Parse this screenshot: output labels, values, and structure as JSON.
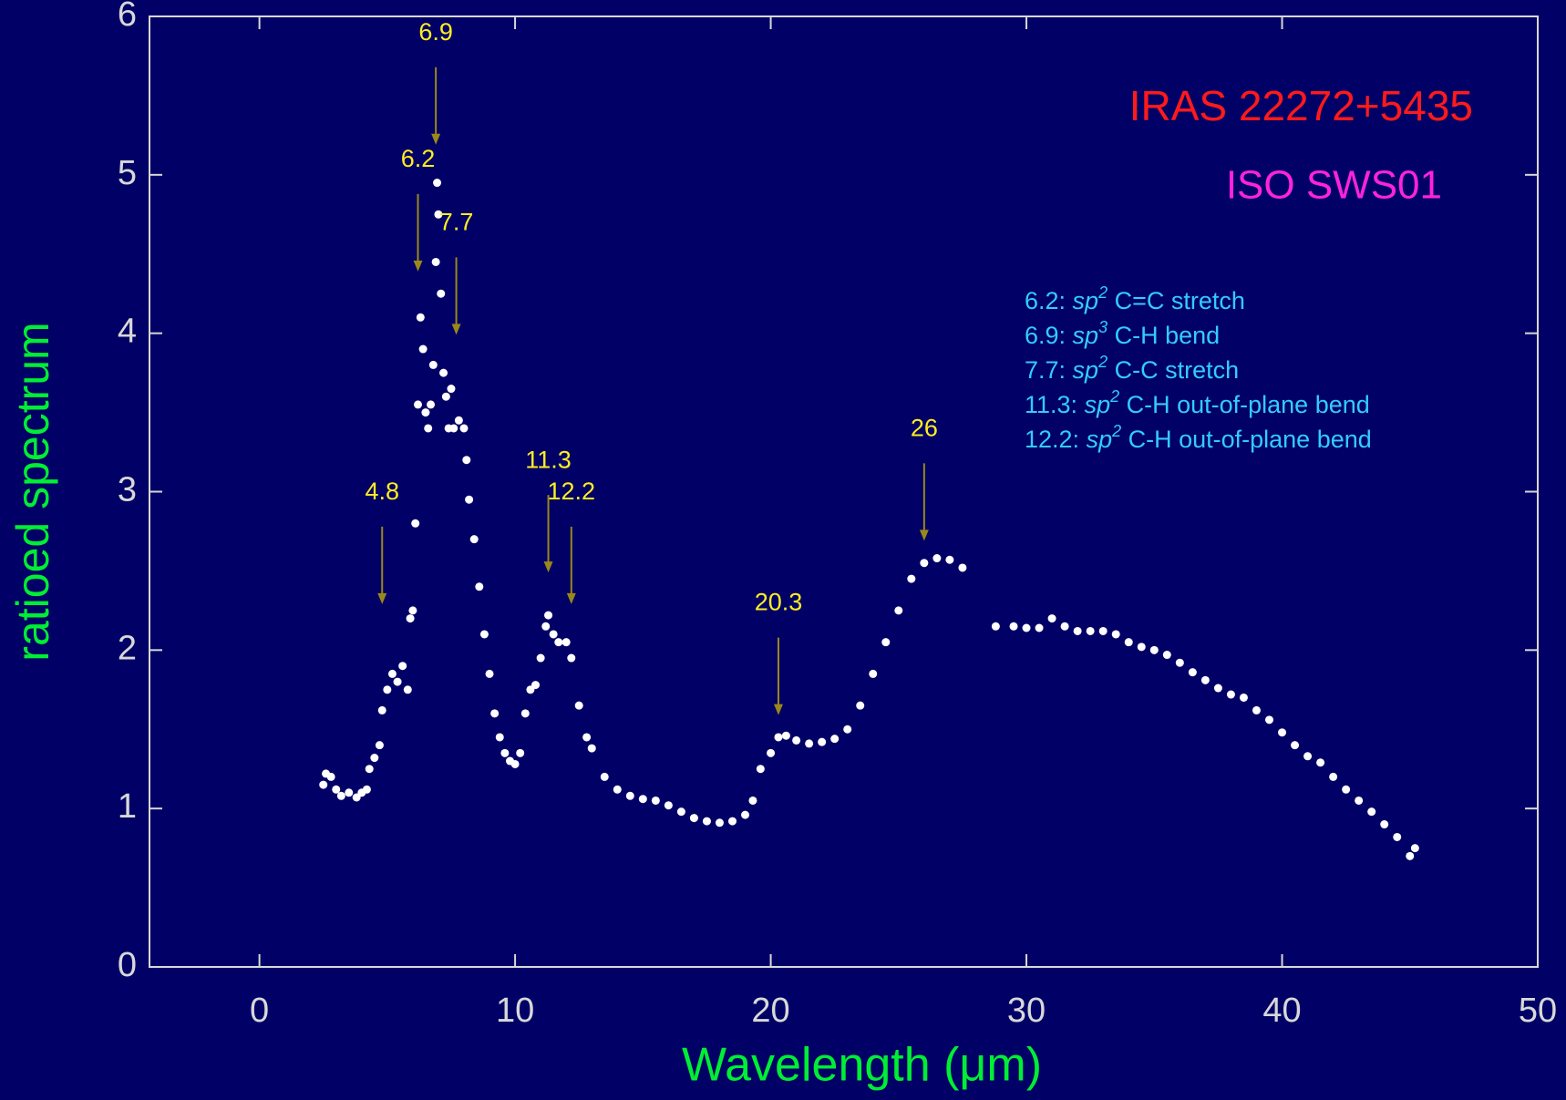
{
  "chart_data": {
    "type": "scatter",
    "title": "IRAS 22272+5435",
    "title_color": "#ff1a1a",
    "subtitle": "ISO SWS01",
    "subtitle_color": "#ff22dd",
    "x_label": "Wavelength (μm)",
    "y_label": "ratioed spectrum",
    "label_color": "#00ee33",
    "xlim": [
      -4.3,
      50
    ],
    "ylim": [
      0,
      6
    ],
    "xticks": [
      0,
      10,
      20,
      30,
      40,
      50
    ],
    "yticks": [
      0,
      1,
      2,
      3,
      4,
      5,
      6
    ],
    "color": "#ffffff",
    "x": [
      2.5,
      2.6,
      2.8,
      3.0,
      3.2,
      3.5,
      3.8,
      4.0,
      4.2,
      4.3,
      4.5,
      4.7,
      4.8,
      5.0,
      5.2,
      5.4,
      5.6,
      5.8,
      5.9,
      6.0,
      6.1,
      6.2,
      6.3,
      6.4,
      6.5,
      6.6,
      6.7,
      6.8,
      6.9,
      6.95,
      7.0,
      7.1,
      7.2,
      7.3,
      7.4,
      7.5,
      7.6,
      7.8,
      8.0,
      8.1,
      8.2,
      8.4,
      8.6,
      8.8,
      9.0,
      9.2,
      9.4,
      9.6,
      9.8,
      10.0,
      10.2,
      10.4,
      10.6,
      10.8,
      11.0,
      11.2,
      11.3,
      11.5,
      11.7,
      12.0,
      12.2,
      12.5,
      12.8,
      13.0,
      13.5,
      14.0,
      14.5,
      15.0,
      15.5,
      16.0,
      16.5,
      17.0,
      17.5,
      18.0,
      18.5,
      19.0,
      19.3,
      19.6,
      20.0,
      20.3,
      20.6,
      21.0,
      21.5,
      22.0,
      22.5,
      23.0,
      23.5,
      24.0,
      24.5,
      25.0,
      25.5,
      26.0,
      26.5,
      27.0,
      27.5,
      28.8,
      29.5,
      30.0,
      30.5,
      31.0,
      31.5,
      32.0,
      32.5,
      33.0,
      33.5,
      34.0,
      34.5,
      35.0,
      35.5,
      36.0,
      36.5,
      37.0,
      37.5,
      38.0,
      38.5,
      39.0,
      39.5,
      40.0,
      40.5,
      41.0,
      41.5,
      42.0,
      42.5,
      43.0,
      43.5,
      44.0,
      44.5,
      45.0,
      45.2
    ],
    "values": [
      1.15,
      1.22,
      1.2,
      1.12,
      1.08,
      1.1,
      1.07,
      1.1,
      1.12,
      1.25,
      1.32,
      1.4,
      1.62,
      1.75,
      1.85,
      1.8,
      1.9,
      1.75,
      2.2,
      2.25,
      2.8,
      3.55,
      4.1,
      3.9,
      3.5,
      3.4,
      3.55,
      3.8,
      4.45,
      4.95,
      4.75,
      4.25,
      3.75,
      3.6,
      3.4,
      3.65,
      3.4,
      3.45,
      3.4,
      3.2,
      2.95,
      2.7,
      2.4,
      2.1,
      1.85,
      1.6,
      1.45,
      1.35,
      1.3,
      1.28,
      1.35,
      1.6,
      1.75,
      1.78,
      1.95,
      2.15,
      2.22,
      2.1,
      2.05,
      2.05,
      1.95,
      1.65,
      1.45,
      1.38,
      1.2,
      1.12,
      1.08,
      1.06,
      1.05,
      1.02,
      0.98,
      0.94,
      0.92,
      0.91,
      0.92,
      0.96,
      1.05,
      1.25,
      1.35,
      1.45,
      1.46,
      1.43,
      1.41,
      1.42,
      1.44,
      1.5,
      1.65,
      1.85,
      2.05,
      2.25,
      2.45,
      2.55,
      2.58,
      2.57,
      2.52,
      2.15,
      2.15,
      2.14,
      2.14,
      2.2,
      2.15,
      2.12,
      2.12,
      2.12,
      2.1,
      2.05,
      2.02,
      2.0,
      1.97,
      1.92,
      1.86,
      1.81,
      1.76,
      1.72,
      1.7,
      1.62,
      1.56,
      1.48,
      1.4,
      1.33,
      1.29,
      1.2,
      1.12,
      1.05,
      0.98,
      0.9,
      0.82,
      0.7,
      0.75
    ],
    "annotation_color": "#99881a",
    "annotations": [
      {
        "label": "4.8",
        "x": 4.8,
        "y": 2.29
      },
      {
        "label": "6.2",
        "x": 6.2,
        "y": 4.39
      },
      {
        "label": "6.9",
        "x": 6.9,
        "y": 5.19
      },
      {
        "label": "7.7",
        "x": 7.7,
        "y": 3.99
      },
      {
        "label": "11.3",
        "x": 11.3,
        "y": 2.49
      },
      {
        "label": "12.2",
        "x": 12.2,
        "y": 2.29
      },
      {
        "label": "20.3",
        "x": 20.3,
        "y": 1.59
      },
      {
        "label": "26",
        "x": 26,
        "y": 2.69
      }
    ],
    "notes": [
      {
        "prefix": "6.2: ",
        "sp": "sp",
        "sup": "2",
        "rest": " C=C stretch"
      },
      {
        "prefix": "6.9: ",
        "sp": "sp",
        "sup": "3",
        "rest": " C-H bend"
      },
      {
        "prefix": "7.7: ",
        "sp": "sp",
        "sup": "2",
        "rest": " C-C stretch"
      },
      {
        "prefix": "11.3: ",
        "sp": "sp",
        "sup": "2",
        "rest": " C-H out-of-plane bend"
      },
      {
        "prefix": "12.2: ",
        "sp": "sp",
        "sup": "2",
        "rest": " C-H out-of-plane bend"
      }
    ]
  }
}
